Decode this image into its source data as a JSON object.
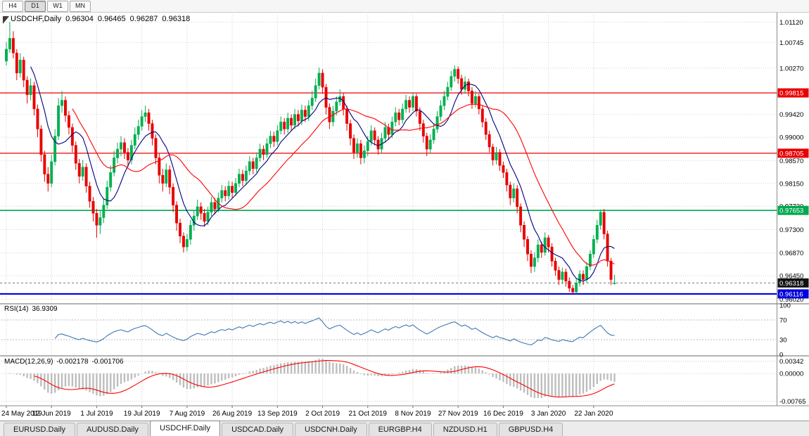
{
  "toolbar": {
    "timeframes": [
      "H4",
      "D1",
      "W1",
      "MN"
    ],
    "active_index": 1
  },
  "chart": {
    "title": "USDCHF,Daily",
    "ohlc": {
      "open": "0.96304",
      "high": "0.96465",
      "low": "0.96287",
      "close": "0.96318"
    },
    "colors": {
      "bull": "#00b050",
      "bear": "#e80000",
      "ma_fast": "#000080",
      "ma_slow": "#ff0000",
      "grid": "#d2d2d2",
      "axis_text": "#000000",
      "resistance": "#e80000",
      "support_green": "#00a94f",
      "support_blue": "#0000dd",
      "bid_badge": "#111111"
    },
    "price_axis": {
      "ticks": [
        {
          "label": "1.01120",
          "value": 1.0112
        },
        {
          "label": "1.00745",
          "value": 1.00745
        },
        {
          "label": "1.00270",
          "value": 1.0027
        },
        {
          "label": "0.99420",
          "value": 0.9942
        },
        {
          "label": "0.99000",
          "value": 0.99
        },
        {
          "label": "0.98570",
          "value": 0.9857
        },
        {
          "label": "0.98150",
          "value": 0.9815
        },
        {
          "label": "0.97730",
          "value": 0.9773
        },
        {
          "label": "0.97300",
          "value": 0.973
        },
        {
          "label": "0.96870",
          "value": 0.9687
        },
        {
          "label": "0.96450",
          "value": 0.9645
        },
        {
          "label": "0.96020",
          "value": 0.9602
        }
      ]
    },
    "levels": [
      {
        "label": "0.99815",
        "price": 0.99815,
        "color": "#e80000",
        "width": 1.3,
        "kind": "resistance"
      },
      {
        "label": "0.98705",
        "price": 0.98705,
        "color": "#e80000",
        "width": 1.3,
        "kind": "resistance"
      },
      {
        "label": "0.97653",
        "price": 0.97653,
        "color": "#00a94f",
        "width": 1.6,
        "kind": "support"
      },
      {
        "label": "0.96116",
        "price": 0.96116,
        "color": "#0000dd",
        "width": 2.2,
        "kind": "support"
      }
    ],
    "current_price": {
      "label": "0.96318",
      "price": 0.96318
    },
    "date_axis": [
      "24 May 2019",
      "12 Jun 2019",
      "1 Jul 2019",
      "19 Jul 2019",
      "7 Aug 2019",
      "26 Aug 2019",
      "13 Sep 2019",
      "2 Oct 2019",
      "21 Oct 2019",
      "8 Nov 2019",
      "27 Nov 2019",
      "16 Dec 2019",
      "3 Jan 2020",
      "22 Jan 2020"
    ],
    "bars_per_label": 13
  },
  "indicators": {
    "rsi": {
      "label": "RSI(14)",
      "value": "36.9309",
      "period": 14,
      "color": "#3e78b2",
      "ticks": [
        {
          "label": "100",
          "value": 100
        },
        {
          "label": "70",
          "value": 70
        },
        {
          "label": "30",
          "value": 30
        },
        {
          "label": "0",
          "value": 0
        }
      ],
      "guides": [
        70,
        30
      ]
    },
    "macd": {
      "label": "MACD(12,26,9)",
      "value_main": "-0.002178",
      "value_signal": "-0.001706",
      "fast": 12,
      "slow": 26,
      "signal": 9,
      "hist_color": "#bdbdbd",
      "signal_color": "#ff0000",
      "ticks": [
        {
          "label": "0.00342",
          "value": 0.00342
        },
        {
          "label": "0.00000",
          "value": 0
        },
        {
          "label": "-0.00765",
          "value": -0.00765
        }
      ]
    }
  },
  "tabs": {
    "items": [
      "EURUSD.Daily",
      "AUDUSD.Daily",
      "USDCHF.Daily",
      "USDCAD.Daily",
      "USDCNH.Daily",
      "EURGBP.H4",
      "NZDUSD.H1",
      "GBPUSD.H4"
    ],
    "active_index": 2
  },
  "chart_data": {
    "type": "candlestick",
    "symbol": "USDCHF",
    "timeframe": "Daily",
    "price_min": 0.9596,
    "price_max": 1.0124,
    "x_labels": [
      "24 May 2019",
      "12 Jun 2019",
      "1 Jul 2019",
      "19 Jul 2019",
      "7 Aug 2019",
      "26 Aug 2019",
      "13 Sep 2019",
      "2 Oct 2019",
      "21 Oct 2019",
      "8 Nov 2019",
      "27 Nov 2019",
      "16 Dec 2019",
      "3 Jan 2020",
      "22 Jan 2020"
    ],
    "overlays": [
      {
        "name": "SMA fast",
        "period": 8,
        "color": "#000080"
      },
      {
        "name": "SMA slow",
        "period": 20,
        "color": "#ff0000"
      }
    ],
    "candles": [
      [
        1.004,
        1.0075,
        1.0032,
        1.0062
      ],
      [
        1.0062,
        1.0112,
        1.0055,
        1.0082
      ],
      [
        1.0082,
        1.0095,
        1.0045,
        1.0055
      ],
      [
        1.0055,
        1.0062,
        1.0005,
        1.0018
      ],
      [
        1.0018,
        1.0055,
        1.001,
        1.0042
      ],
      [
        1.0042,
        1.0048,
        0.9992,
        1.0005
      ],
      [
        1.0005,
        1.0012,
        0.9962,
        0.9978
      ],
      [
        0.9978,
        1.0008,
        0.9968,
        0.9995
      ],
      [
        0.9995,
        1.0002,
        0.994,
        0.9952
      ],
      [
        0.9952,
        0.996,
        0.99,
        0.9915
      ],
      [
        0.9915,
        0.9922,
        0.9855,
        0.9868
      ],
      [
        0.9868,
        0.9875,
        0.9818,
        0.9832
      ],
      [
        0.9832,
        0.9845,
        0.98,
        0.9815
      ],
      [
        0.9815,
        0.9868,
        0.9808,
        0.9855
      ],
      [
        0.9855,
        0.9915,
        0.9848,
        0.9902
      ],
      [
        0.9902,
        0.9972,
        0.9895,
        0.9958
      ],
      [
        0.9958,
        0.9985,
        0.9945,
        0.9968
      ],
      [
        0.9968,
        0.9975,
        0.9928,
        0.994
      ],
      [
        0.994,
        0.9948,
        0.9905,
        0.9918
      ],
      [
        0.9918,
        0.9925,
        0.9872,
        0.9885
      ],
      [
        0.9885,
        0.9892,
        0.984,
        0.9852
      ],
      [
        0.9852,
        0.986,
        0.9815,
        0.9828
      ],
      [
        0.9828,
        0.9858,
        0.982,
        0.9845
      ],
      [
        0.9845,
        0.9852,
        0.9798,
        0.981
      ],
      [
        0.981,
        0.9818,
        0.977,
        0.9782
      ],
      [
        0.9782,
        0.979,
        0.9745,
        0.976
      ],
      [
        0.976,
        0.9768,
        0.9715,
        0.9738
      ],
      [
        0.9738,
        0.9765,
        0.9722,
        0.9752
      ],
      [
        0.9752,
        0.9788,
        0.9742,
        0.9775
      ],
      [
        0.9775,
        0.982,
        0.9768,
        0.9808
      ],
      [
        0.9808,
        0.9848,
        0.98,
        0.9835
      ],
      [
        0.9835,
        0.9875,
        0.9828,
        0.9862
      ],
      [
        0.9862,
        0.989,
        0.9852,
        0.9878
      ],
      [
        0.9878,
        0.9902,
        0.9865,
        0.989
      ],
      [
        0.989,
        0.9898,
        0.986,
        0.9872
      ],
      [
        0.9872,
        0.988,
        0.9845,
        0.9858
      ],
      [
        0.9858,
        0.9895,
        0.985,
        0.9885
      ],
      [
        0.9885,
        0.9918,
        0.9878,
        0.9905
      ],
      [
        0.9905,
        0.9932,
        0.9895,
        0.992
      ],
      [
        0.992,
        0.995,
        0.9912,
        0.9938
      ],
      [
        0.9938,
        0.9958,
        0.9928,
        0.9945
      ],
      [
        0.9945,
        0.9952,
        0.9912,
        0.9925
      ],
      [
        0.9925,
        0.9932,
        0.9885,
        0.9898
      ],
      [
        0.9898,
        0.9905,
        0.985,
        0.9862
      ],
      [
        0.9862,
        0.987,
        0.9815,
        0.983
      ],
      [
        0.983,
        0.9842,
        0.98,
        0.9815
      ],
      [
        0.9815,
        0.9852,
        0.9808,
        0.984
      ],
      [
        0.984,
        0.9848,
        0.9795,
        0.9808
      ],
      [
        0.9808,
        0.9815,
        0.9762,
        0.9775
      ],
      [
        0.9775,
        0.9782,
        0.9728,
        0.9742
      ],
      [
        0.9742,
        0.975,
        0.9705,
        0.9718
      ],
      [
        0.9718,
        0.9725,
        0.9688,
        0.9698
      ],
      [
        0.9698,
        0.9722,
        0.969,
        0.9712
      ],
      [
        0.9712,
        0.9748,
        0.9702,
        0.9738
      ],
      [
        0.9738,
        0.9765,
        0.9728,
        0.9755
      ],
      [
        0.9755,
        0.9785,
        0.9748,
        0.9772
      ],
      [
        0.9772,
        0.978,
        0.9748,
        0.976
      ],
      [
        0.976,
        0.9768,
        0.9735,
        0.9745
      ],
      [
        0.9745,
        0.9772,
        0.9738,
        0.9762
      ],
      [
        0.9762,
        0.979,
        0.9755,
        0.978
      ],
      [
        0.978,
        0.9788,
        0.9758,
        0.9768
      ],
      [
        0.9768,
        0.9798,
        0.9762,
        0.9788
      ],
      [
        0.9788,
        0.9812,
        0.978,
        0.9802
      ],
      [
        0.9802,
        0.981,
        0.9782,
        0.9792
      ],
      [
        0.9792,
        0.982,
        0.9785,
        0.981
      ],
      [
        0.981,
        0.9818,
        0.9788,
        0.9798
      ],
      [
        0.9798,
        0.9825,
        0.9792,
        0.9815
      ],
      [
        0.9815,
        0.9842,
        0.9808,
        0.9832
      ],
      [
        0.9832,
        0.984,
        0.981,
        0.982
      ],
      [
        0.982,
        0.9848,
        0.9812,
        0.9838
      ],
      [
        0.9838,
        0.9865,
        0.983,
        0.9855
      ],
      [
        0.9855,
        0.9862,
        0.9832,
        0.9842
      ],
      [
        0.9842,
        0.9872,
        0.9835,
        0.9862
      ],
      [
        0.9862,
        0.9888,
        0.9855,
        0.9878
      ],
      [
        0.9878,
        0.9885,
        0.9858,
        0.9868
      ],
      [
        0.9868,
        0.9898,
        0.9862,
        0.9888
      ],
      [
        0.9888,
        0.9912,
        0.988,
        0.9902
      ],
      [
        0.9902,
        0.991,
        0.9882,
        0.9892
      ],
      [
        0.9892,
        0.9922,
        0.9885,
        0.9912
      ],
      [
        0.9912,
        0.9938,
        0.9905,
        0.9928
      ],
      [
        0.9928,
        0.9935,
        0.9905,
        0.9915
      ],
      [
        0.9915,
        0.9945,
        0.9908,
        0.9935
      ],
      [
        0.9935,
        0.9942,
        0.9912,
        0.9922
      ],
      [
        0.9922,
        0.9952,
        0.9915,
        0.9942
      ],
      [
        0.9942,
        0.995,
        0.992,
        0.993
      ],
      [
        0.993,
        0.996,
        0.9922,
        0.995
      ],
      [
        0.995,
        0.9958,
        0.9928,
        0.9938
      ],
      [
        0.9938,
        0.9968,
        0.993,
        0.9958
      ],
      [
        0.9958,
        0.9985,
        0.995,
        0.9972
      ],
      [
        0.9972,
        1.0008,
        0.9965,
        0.9995
      ],
      [
        0.9995,
        1.0028,
        0.9988,
        1.0018
      ],
      [
        1.0018,
        1.0025,
        0.998,
        0.9992
      ],
      [
        0.9992,
        0.9998,
        0.9942,
        0.9955
      ],
      [
        0.9955,
        0.9962,
        0.9915,
        0.9928
      ],
      [
        0.9928,
        0.9958,
        0.992,
        0.9948
      ],
      [
        0.9948,
        0.9975,
        0.994,
        0.9965
      ],
      [
        0.9965,
        0.9988,
        0.9958,
        0.9975
      ],
      [
        0.9975,
        0.9982,
        0.994,
        0.9952
      ],
      [
        0.9952,
        0.9958,
        0.9912,
        0.9925
      ],
      [
        0.9925,
        0.9932,
        0.9885,
        0.9898
      ],
      [
        0.9898,
        0.9905,
        0.986,
        0.9872
      ],
      [
        0.9872,
        0.9898,
        0.9862,
        0.9888
      ],
      [
        0.9888,
        0.9895,
        0.985,
        0.9862
      ],
      [
        0.9862,
        0.9885,
        0.9852,
        0.9875
      ],
      [
        0.9875,
        0.9902,
        0.9865,
        0.9892
      ],
      [
        0.9892,
        0.9922,
        0.9885,
        0.9912
      ],
      [
        0.9912,
        0.9918,
        0.9885,
        0.9895
      ],
      [
        0.9895,
        0.9902,
        0.9868,
        0.9878
      ],
      [
        0.9878,
        0.9908,
        0.987,
        0.9898
      ],
      [
        0.9898,
        0.9928,
        0.989,
        0.9918
      ],
      [
        0.9918,
        0.9925,
        0.9895,
        0.9905
      ],
      [
        0.9905,
        0.9938,
        0.9898,
        0.9928
      ],
      [
        0.9928,
        0.9955,
        0.992,
        0.9945
      ],
      [
        0.9945,
        0.9952,
        0.9922,
        0.9932
      ],
      [
        0.9932,
        0.9962,
        0.9925,
        0.9952
      ],
      [
        0.9952,
        0.9978,
        0.9945,
        0.9968
      ],
      [
        0.9968,
        0.9975,
        0.9945,
        0.9955
      ],
      [
        0.9955,
        0.9982,
        0.9948,
        0.9975
      ],
      [
        0.9975,
        0.998,
        0.9938,
        0.9948
      ],
      [
        0.9948,
        0.9955,
        0.9912,
        0.9925
      ],
      [
        0.9925,
        0.9932,
        0.989,
        0.9902
      ],
      [
        0.9902,
        0.9908,
        0.9865,
        0.9878
      ],
      [
        0.9878,
        0.9905,
        0.987,
        0.9895
      ],
      [
        0.9895,
        0.9925,
        0.9888,
        0.9915
      ],
      [
        0.9915,
        0.9948,
        0.9908,
        0.9938
      ],
      [
        0.9938,
        0.9968,
        0.993,
        0.9958
      ],
      [
        0.9958,
        0.9985,
        0.995,
        0.9975
      ],
      [
        0.9975,
        1.0002,
        0.9968,
        0.9992
      ],
      [
        0.9992,
        1.0022,
        0.9985,
        1.0012
      ],
      [
        1.0012,
        1.0032,
        1.0002,
        1.0025
      ],
      [
        1.0025,
        1.003,
        0.9998,
        1.0008
      ],
      [
        1.0008,
        1.0015,
        0.9978,
        0.9988
      ],
      [
        0.9988,
        1.0012,
        0.998,
        1.0002
      ],
      [
        1.0002,
        1.0008,
        0.9975,
        0.9985
      ],
      [
        0.9985,
        0.9992,
        0.9952,
        0.9962
      ],
      [
        0.9962,
        0.9985,
        0.9955,
        0.9975
      ],
      [
        0.9975,
        0.998,
        0.9942,
        0.9952
      ],
      [
        0.9952,
        0.9958,
        0.9918,
        0.9928
      ],
      [
        0.9928,
        0.9935,
        0.9895,
        0.9905
      ],
      [
        0.9905,
        0.9912,
        0.9872,
        0.9882
      ],
      [
        0.9882,
        0.9888,
        0.9848,
        0.9858
      ],
      [
        0.9858,
        0.9882,
        0.985,
        0.9872
      ],
      [
        0.9872,
        0.9878,
        0.9838,
        0.9848
      ],
      [
        0.9848,
        0.9855,
        0.9825,
        0.9835
      ],
      [
        0.9835,
        0.9842,
        0.98,
        0.9812
      ],
      [
        0.9812,
        0.9818,
        0.9775,
        0.9788
      ],
      [
        0.9788,
        0.9815,
        0.978,
        0.9805
      ],
      [
        0.9805,
        0.9812,
        0.976,
        0.9772
      ],
      [
        0.9772,
        0.9778,
        0.9725,
        0.9738
      ],
      [
        0.9738,
        0.9745,
        0.9698,
        0.9712
      ],
      [
        0.9712,
        0.9718,
        0.9672,
        0.9685
      ],
      [
        0.9685,
        0.9692,
        0.965,
        0.9662
      ],
      [
        0.9662,
        0.9688,
        0.9652,
        0.9678
      ],
      [
        0.9678,
        0.9712,
        0.967,
        0.9702
      ],
      [
        0.9702,
        0.9708,
        0.9678,
        0.9688
      ],
      [
        0.9688,
        0.9725,
        0.9682,
        0.9715
      ],
      [
        0.9715,
        0.972,
        0.9688,
        0.9698
      ],
      [
        0.9698,
        0.9705,
        0.9662,
        0.9672
      ],
      [
        0.9672,
        0.9678,
        0.9645,
        0.9655
      ],
      [
        0.9655,
        0.9662,
        0.9628,
        0.9638
      ],
      [
        0.9638,
        0.966,
        0.963,
        0.9652
      ],
      [
        0.9652,
        0.9658,
        0.9625,
        0.9635
      ],
      [
        0.9635,
        0.9642,
        0.9615,
        0.9622
      ],
      [
        0.9622,
        0.9628,
        0.9612,
        0.9615
      ],
      [
        0.9615,
        0.964,
        0.9612,
        0.9632
      ],
      [
        0.9632,
        0.9655,
        0.9625,
        0.9648
      ],
      [
        0.9648,
        0.9655,
        0.9628,
        0.9638
      ],
      [
        0.9638,
        0.967,
        0.9632,
        0.9662
      ],
      [
        0.9662,
        0.9692,
        0.9655,
        0.9685
      ],
      [
        0.9685,
        0.972,
        0.9678,
        0.9712
      ],
      [
        0.9712,
        0.9748,
        0.9705,
        0.9738
      ],
      [
        0.9738,
        0.9767,
        0.973,
        0.9762
      ],
      [
        0.9762,
        0.9768,
        0.9712,
        0.9722
      ],
      [
        0.9722,
        0.9728,
        0.9662,
        0.9672
      ],
      [
        0.9672,
        0.9678,
        0.9628,
        0.9638
      ],
      [
        0.96304,
        0.96465,
        0.96287,
        0.96318
      ]
    ]
  }
}
